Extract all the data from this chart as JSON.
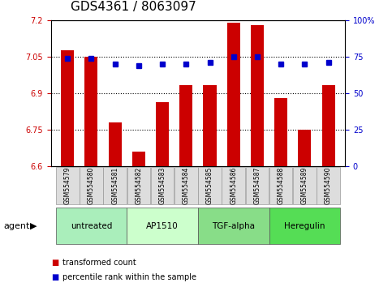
{
  "title": "GDS4361 / 8063097",
  "samples": [
    "GSM554579",
    "GSM554580",
    "GSM554581",
    "GSM554582",
    "GSM554583",
    "GSM554584",
    "GSM554585",
    "GSM554586",
    "GSM554587",
    "GSM554588",
    "GSM554589",
    "GSM554590"
  ],
  "bar_values": [
    7.075,
    7.05,
    6.78,
    6.66,
    6.865,
    6.935,
    6.935,
    7.19,
    7.18,
    6.88,
    6.75,
    6.935
  ],
  "percentile_values": [
    74,
    74,
    70,
    69,
    70,
    70,
    71,
    75,
    75,
    70,
    70,
    71
  ],
  "ylim_left": [
    6.6,
    7.2
  ],
  "ylim_right": [
    0,
    100
  ],
  "yticks_left": [
    6.6,
    6.75,
    6.9,
    7.05,
    7.2
  ],
  "yticks_right": [
    0,
    25,
    50,
    75,
    100
  ],
  "ytick_labels_left": [
    "6.6",
    "6.75",
    "6.9",
    "7.05",
    "7.2"
  ],
  "ytick_labels_right": [
    "0",
    "25",
    "50",
    "75",
    "100%"
  ],
  "bar_color": "#cc0000",
  "dot_color": "#0000cc",
  "agent_groups": [
    {
      "label": "untreated",
      "start": 0,
      "end": 3,
      "color": "#aaeebb"
    },
    {
      "label": "AP1510",
      "start": 3,
      "end": 6,
      "color": "#ccffcc"
    },
    {
      "label": "TGF-alpha",
      "start": 6,
      "end": 9,
      "color": "#88dd88"
    },
    {
      "label": "Heregulin",
      "start": 9,
      "end": 12,
      "color": "#55dd55"
    }
  ],
  "grid_color": "#000000",
  "grid_style": "dotted",
  "bar_width": 0.55,
  "tick_label_size": 7,
  "title_fontsize": 11,
  "legend_items": [
    {
      "label": "transformed count",
      "color": "#cc0000"
    },
    {
      "label": "percentile rank within the sample",
      "color": "#0000cc"
    }
  ],
  "agent_label": "agent",
  "background_color": "#ffffff",
  "sample_box_color": "#dddddd",
  "sample_box_edge": "#999999"
}
